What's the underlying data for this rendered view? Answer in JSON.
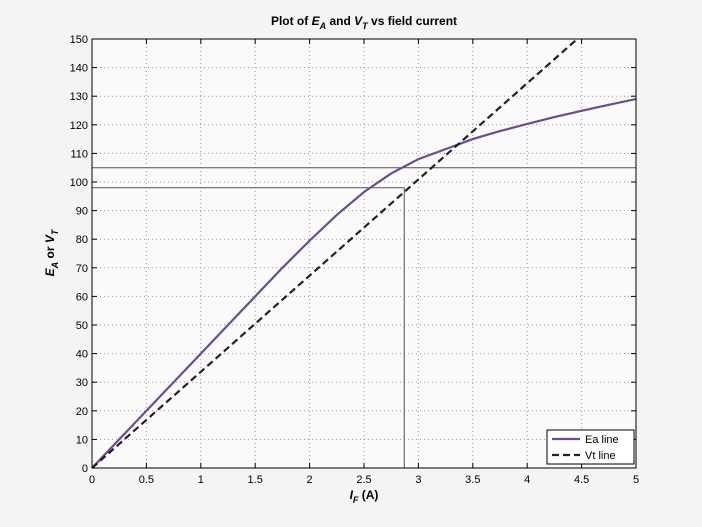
{
  "chart_data": {
    "type": "line",
    "title": [
      "Plot of",
      "E",
      "A",
      "and",
      "V",
      "T",
      "vs field current"
    ],
    "xlabel": [
      "I",
      "F",
      "(A)"
    ],
    "ylabel": [
      "E",
      "A",
      "or",
      "V",
      "T"
    ],
    "xlim": [
      0,
      5
    ],
    "ylim": [
      0,
      150
    ],
    "xticks": [
      0,
      0.5,
      1,
      1.5,
      2,
      2.5,
      3,
      3.5,
      4,
      4.5,
      5
    ],
    "yticks": [
      0,
      10,
      20,
      30,
      40,
      50,
      60,
      70,
      80,
      90,
      100,
      110,
      120,
      130,
      140,
      150
    ],
    "grid": true,
    "legend": "lower right",
    "series": [
      {
        "name": "Ea line",
        "color": "#6a4c93",
        "dash": "solid",
        "x": [
          0,
          0.25,
          0.5,
          0.75,
          1,
          1.25,
          1.5,
          1.75,
          2,
          2.25,
          2.5,
          2.75,
          3,
          3.25,
          3.5,
          3.75,
          4,
          4.25,
          4.5,
          4.75,
          5
        ],
        "values": [
          0,
          10,
          20,
          30,
          40,
          50,
          60,
          70,
          79.5,
          88.5,
          96.5,
          103,
          108,
          111.5,
          115,
          117.8,
          120.3,
          122.7,
          124.9,
          127,
          129
        ]
      },
      {
        "name": "Vt line",
        "color": "#222222",
        "dash": "dashed",
        "x": [
          0,
          4.46
        ],
        "values": [
          0,
          150
        ]
      }
    ],
    "reference_lines": [
      {
        "x": [
          0,
          5
        ],
        "y": [
          105,
          105
        ]
      },
      {
        "x": [
          0,
          2.87,
          2.87
        ],
        "y": [
          98,
          98,
          0
        ]
      }
    ]
  }
}
